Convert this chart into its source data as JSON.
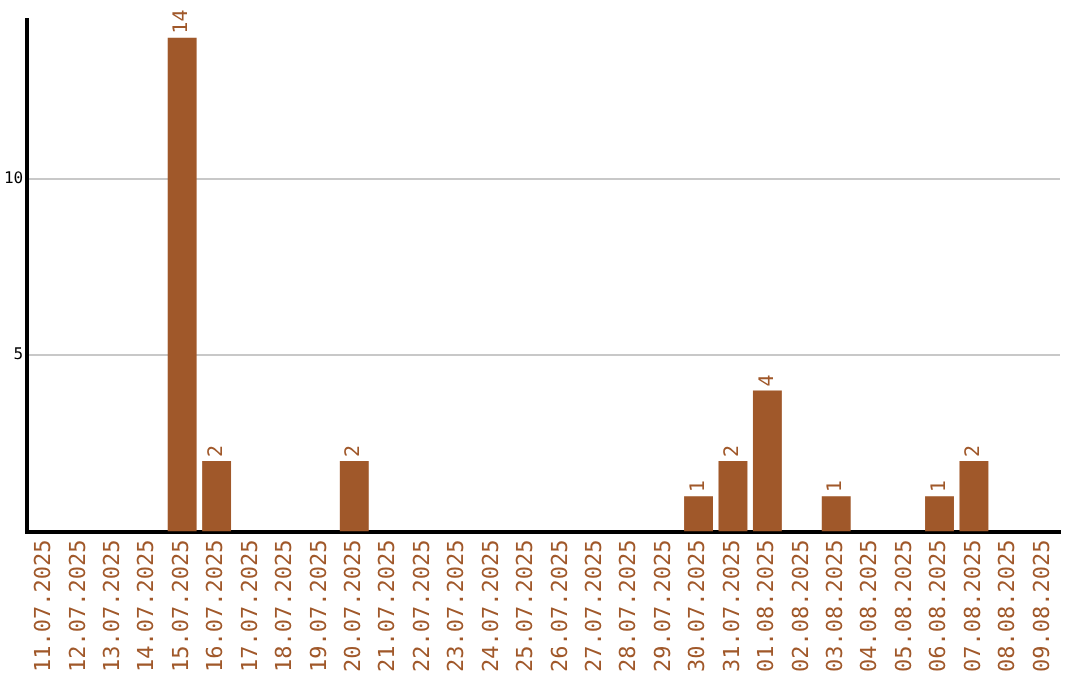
{
  "chart_data": {
    "type": "bar",
    "categories": [
      "11.07.2025",
      "12.07.2025",
      "13.07.2025",
      "14.07.2025",
      "15.07.2025",
      "16.07.2025",
      "17.07.2025",
      "18.07.2025",
      "19.07.2025",
      "20.07.2025",
      "21.07.2025",
      "22.07.2025",
      "23.07.2025",
      "24.07.2025",
      "25.07.2025",
      "26.07.2025",
      "27.07.2025",
      "28.07.2025",
      "29.07.2025",
      "30.07.2025",
      "31.07.2025",
      "01.08.2025",
      "02.08.2025",
      "03.08.2025",
      "04.08.2025",
      "05.08.2025",
      "06.08.2025",
      "07.08.2025",
      "08.08.2025",
      "09.08.2025"
    ],
    "values": [
      0,
      0,
      0,
      0,
      14,
      2,
      0,
      0,
      0,
      2,
      0,
      0,
      0,
      0,
      0,
      0,
      0,
      0,
      0,
      1,
      2,
      4,
      0,
      1,
      0,
      0,
      1,
      2,
      0,
      0
    ],
    "value_labels": [
      null,
      null,
      null,
      null,
      "14",
      "2",
      null,
      null,
      null,
      "2",
      null,
      null,
      null,
      null,
      null,
      null,
      null,
      null,
      null,
      "1",
      "2",
      "4",
      null,
      "1",
      null,
      null,
      "1",
      "2",
      null,
      null
    ],
    "color": "#a0582a",
    "ylim": [
      0,
      14.5
    ],
    "yticks": [
      5,
      10
    ],
    "grid": "y",
    "legend": false
  }
}
